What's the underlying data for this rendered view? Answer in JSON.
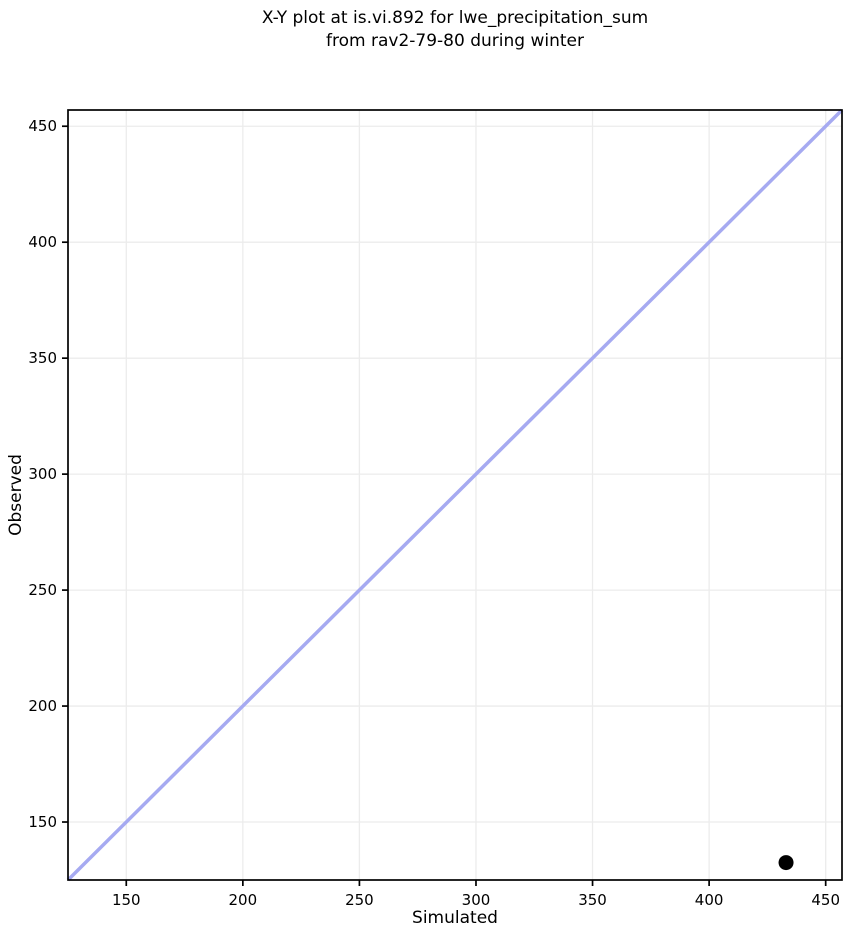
{
  "chart_data": {
    "type": "scatter",
    "title": "X-Y plot at is.vi.892 for lwe_precipitation_sum\nfrom rav2-79-80 during winter",
    "xlabel": "Simulated",
    "ylabel": "Observed",
    "xlim": [
      125,
      457
    ],
    "ylim": [
      125,
      457
    ],
    "xticks": [
      150,
      200,
      250,
      300,
      350,
      400,
      450
    ],
    "yticks": [
      150,
      200,
      250,
      300,
      350,
      400,
      450
    ],
    "grid": true,
    "legend": false,
    "series": [
      {
        "name": "identity-line",
        "type": "line",
        "color": "#a6aaf1",
        "width": 3.5,
        "x": [
          125,
          457
        ],
        "y": [
          125,
          457
        ]
      },
      {
        "name": "observation-point",
        "type": "scatter",
        "marker": "circle",
        "color": "#000000",
        "radius": 7.5,
        "points": [
          {
            "x": 433,
            "y": 132.5
          }
        ]
      }
    ],
    "colors": {
      "background": "#ffffff",
      "grid": "#ececec",
      "spine": "#000000",
      "tick": "#000000",
      "text": "#000000",
      "identity_line": "#a6aaf1",
      "marker": "#000000"
    }
  }
}
